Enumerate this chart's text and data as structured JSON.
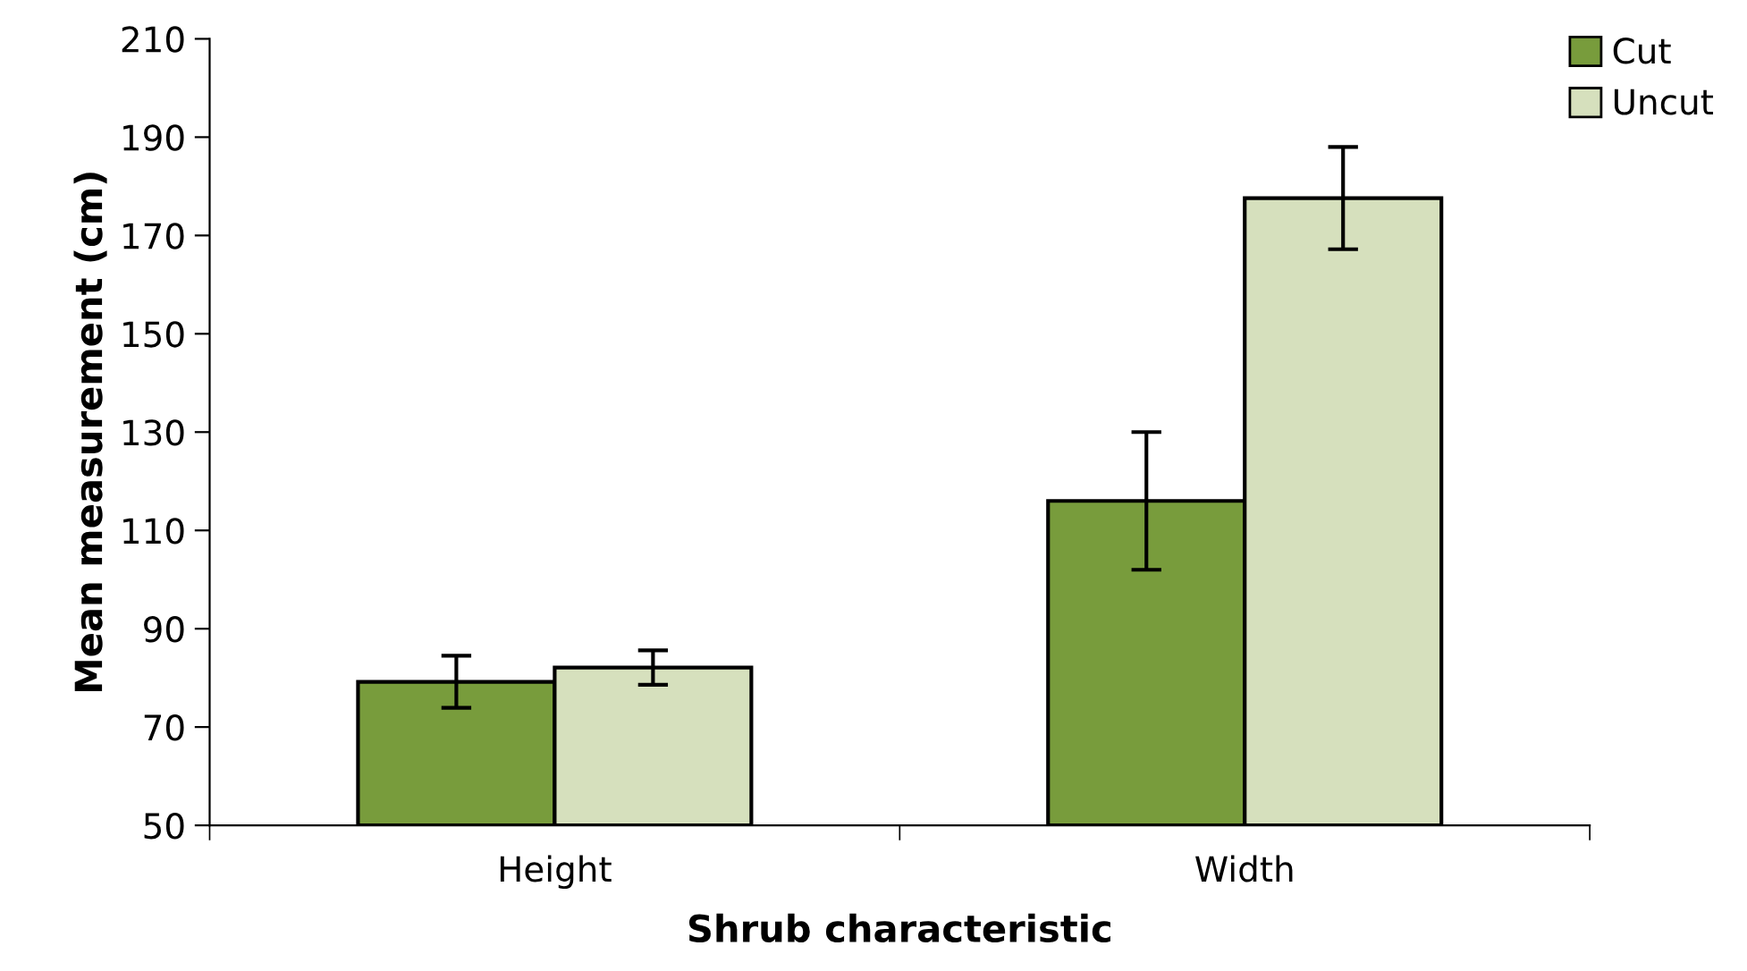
{
  "chart_data": {
    "type": "bar",
    "xlabel": "Shrub characteristic",
    "ylabel": "Mean measurement (cm)",
    "categories": [
      "Height",
      "Width"
    ],
    "series": [
      {
        "name": "Cut",
        "color": "#789c3c",
        "values": [
          79.2,
          116
        ],
        "errors": [
          5.3,
          14
        ]
      },
      {
        "name": "Uncut",
        "color": "#d6e0bd",
        "values": [
          82.1,
          177.6
        ],
        "errors": [
          3.5,
          10.4
        ]
      }
    ],
    "ylim": [
      50,
      210
    ],
    "yticks": [
      50,
      70,
      90,
      110,
      130,
      150,
      170,
      190,
      210
    ],
    "grid": false,
    "legend": "top right"
  }
}
